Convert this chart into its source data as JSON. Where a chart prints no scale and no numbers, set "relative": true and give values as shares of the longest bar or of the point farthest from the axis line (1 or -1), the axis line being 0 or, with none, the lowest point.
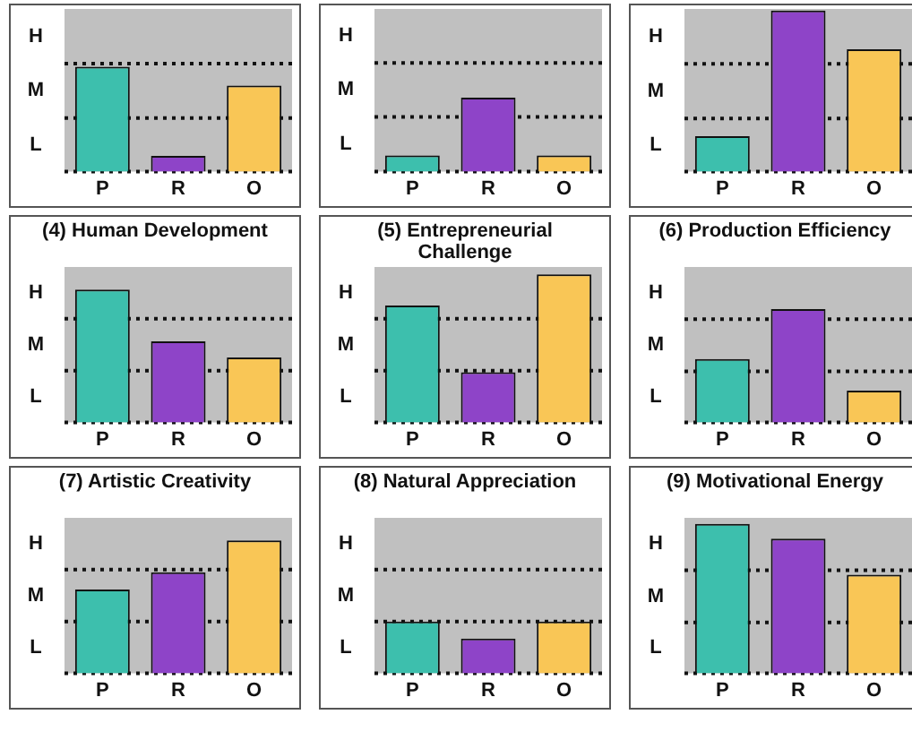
{
  "chart_data": [
    {
      "type": "bar",
      "relative": true,
      "categories": [
        "P",
        "R",
        "O"
      ],
      "values": [
        1,
        0.15,
        0.82
      ],
      "colors": [
        "#3dbfad",
        "#8e44c8",
        "#f9c656"
      ],
      "ref_lines": [
        {
          "axis": "y",
          "value": 0.51,
          "line_style": "dotted"
        },
        {
          "axis": "y",
          "value": 1.03,
          "line_style": "dotted"
        }
      ],
      "annotations": [
        "L",
        "M",
        "H"
      ]
    },
    {
      "type": "bar",
      "relative": true,
      "categories": [
        "P",
        "R",
        "O"
      ],
      "values": [
        0.22,
        1,
        0.22
      ],
      "colors": [
        "#3dbfad",
        "#8e44c8",
        "#f9c656"
      ],
      "ref_lines": [
        {
          "axis": "y",
          "value": 0.74,
          "line_style": "dotted"
        },
        {
          "axis": "y",
          "value": 1.47,
          "line_style": "dotted"
        }
      ],
      "annotations": [
        "L",
        "M",
        "H"
      ]
    },
    {
      "type": "bar",
      "relative": true,
      "categories": [
        "P",
        "R",
        "O"
      ],
      "values": [
        0.22,
        1,
        0.76
      ],
      "colors": [
        "#3dbfad",
        "#8e44c8",
        "#f9c656"
      ],
      "ref_lines": [
        {
          "axis": "y",
          "value": 0.33,
          "line_style": "dotted"
        },
        {
          "axis": "y",
          "value": 0.67,
          "line_style": "dotted"
        }
      ],
      "annotations": [
        "L",
        "M",
        "H"
      ]
    },
    {
      "type": "bar",
      "relative": true,
      "title": "(4) Human Development",
      "categories": [
        "P",
        "R",
        "O"
      ],
      "values": [
        1,
        0.61,
        0.49
      ],
      "colors": [
        "#3dbfad",
        "#8e44c8",
        "#f9c656"
      ],
      "ref_lines": [
        {
          "axis": "y",
          "value": 0.39,
          "line_style": "dotted"
        },
        {
          "axis": "y",
          "value": 0.78,
          "line_style": "dotted"
        }
      ],
      "annotations": [
        "L",
        "M",
        "H"
      ]
    },
    {
      "type": "bar",
      "relative": true,
      "title": "(5) Entrepreneurial Challenge",
      "categories": [
        "P",
        "R",
        "O"
      ],
      "values": [
        0.79,
        0.34,
        1
      ],
      "colors": [
        "#3dbfad",
        "#8e44c8",
        "#f9c656"
      ],
      "ref_lines": [
        {
          "axis": "y",
          "value": 0.35,
          "line_style": "dotted"
        },
        {
          "axis": "y",
          "value": 0.7,
          "line_style": "dotted"
        }
      ],
      "annotations": [
        "L",
        "M",
        "H"
      ]
    },
    {
      "type": "bar",
      "relative": true,
      "title": "(6) Production Efficiency",
      "categories": [
        "P",
        "R",
        "O"
      ],
      "values": [
        0.56,
        1,
        0.28
      ],
      "colors": [
        "#3dbfad",
        "#8e44c8",
        "#f9c656"
      ],
      "ref_lines": [
        {
          "axis": "y",
          "value": 0.45,
          "line_style": "dotted"
        },
        {
          "axis": "y",
          "value": 0.91,
          "line_style": "dotted"
        }
      ],
      "annotations": [
        "L",
        "M",
        "H"
      ]
    },
    {
      "type": "bar",
      "relative": true,
      "title": "(7) Artistic Creativity",
      "categories": [
        "P",
        "R",
        "O"
      ],
      "values": [
        0.63,
        0.76,
        1
      ],
      "colors": [
        "#3dbfad",
        "#8e44c8",
        "#f9c656"
      ],
      "ref_lines": [
        {
          "axis": "y",
          "value": 0.39,
          "line_style": "dotted"
        },
        {
          "axis": "y",
          "value": 0.78,
          "line_style": "dotted"
        }
      ],
      "annotations": [
        "L",
        "M",
        "H"
      ]
    },
    {
      "type": "bar",
      "relative": true,
      "title": "(8) Natural Appreciation",
      "categories": [
        "P",
        "R",
        "O"
      ],
      "values": [
        1,
        0.67,
        1
      ],
      "colors": [
        "#3dbfad",
        "#8e44c8",
        "#f9c656"
      ],
      "ref_lines": [
        {
          "axis": "y",
          "value": 1,
          "line_style": "dotted"
        },
        {
          "axis": "y",
          "value": 2,
          "line_style": "dotted"
        }
      ],
      "annotations": [
        "L",
        "M",
        "H"
      ]
    },
    {
      "type": "bar",
      "relative": true,
      "title": "(9) Motivational Energy",
      "categories": [
        "P",
        "R",
        "O"
      ],
      "values": [
        1,
        0.9,
        0.66
      ],
      "colors": [
        "#3dbfad",
        "#8e44c8",
        "#f9c656"
      ],
      "ref_lines": [
        {
          "axis": "y",
          "value": 0.34,
          "line_style": "dotted"
        },
        {
          "axis": "y",
          "value": 0.69,
          "line_style": "dotted"
        }
      ],
      "annotations": [
        "L",
        "M",
        "H"
      ]
    }
  ]
}
